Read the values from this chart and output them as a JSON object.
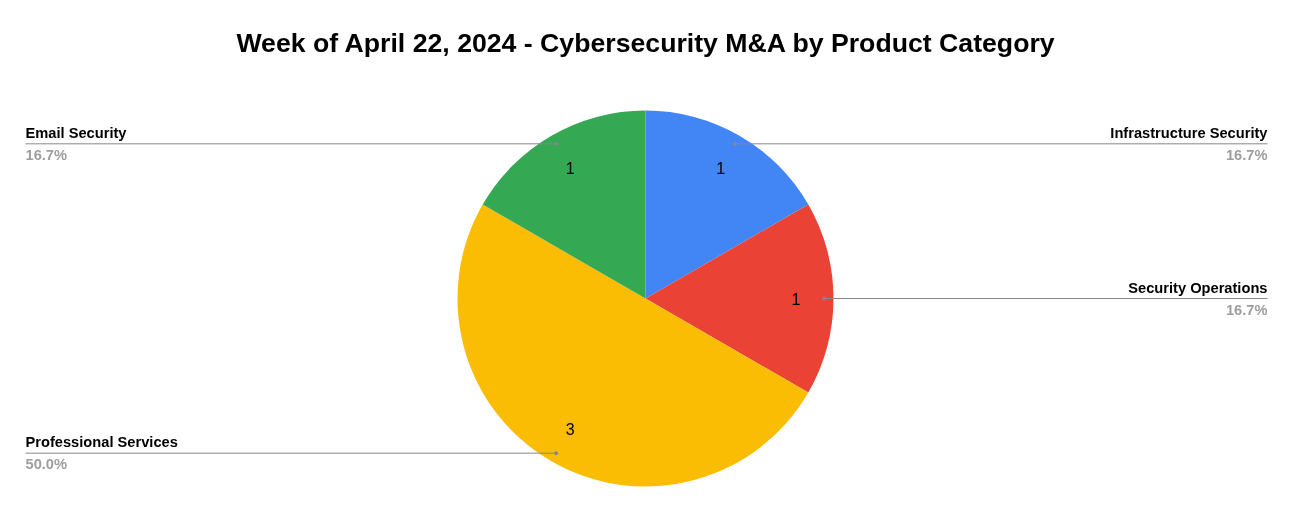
{
  "chart_data": {
    "type": "pie",
    "title": "Week of April 22, 2024 - Cybersecurity M&A by Product Category",
    "categories": [
      "Infrastructure Security",
      "Security Operations",
      "Professional Services",
      "Email Security"
    ],
    "values": [
      1,
      1,
      3,
      1
    ],
    "colors": [
      "#4285f4",
      "#ea4335",
      "#fbbc04",
      "#34a853"
    ],
    "value_labels": [
      "1",
      "1",
      "3",
      "1"
    ],
    "annotations": [
      "16.7%",
      "16.7%",
      "50.0%",
      "16.7%"
    ]
  }
}
